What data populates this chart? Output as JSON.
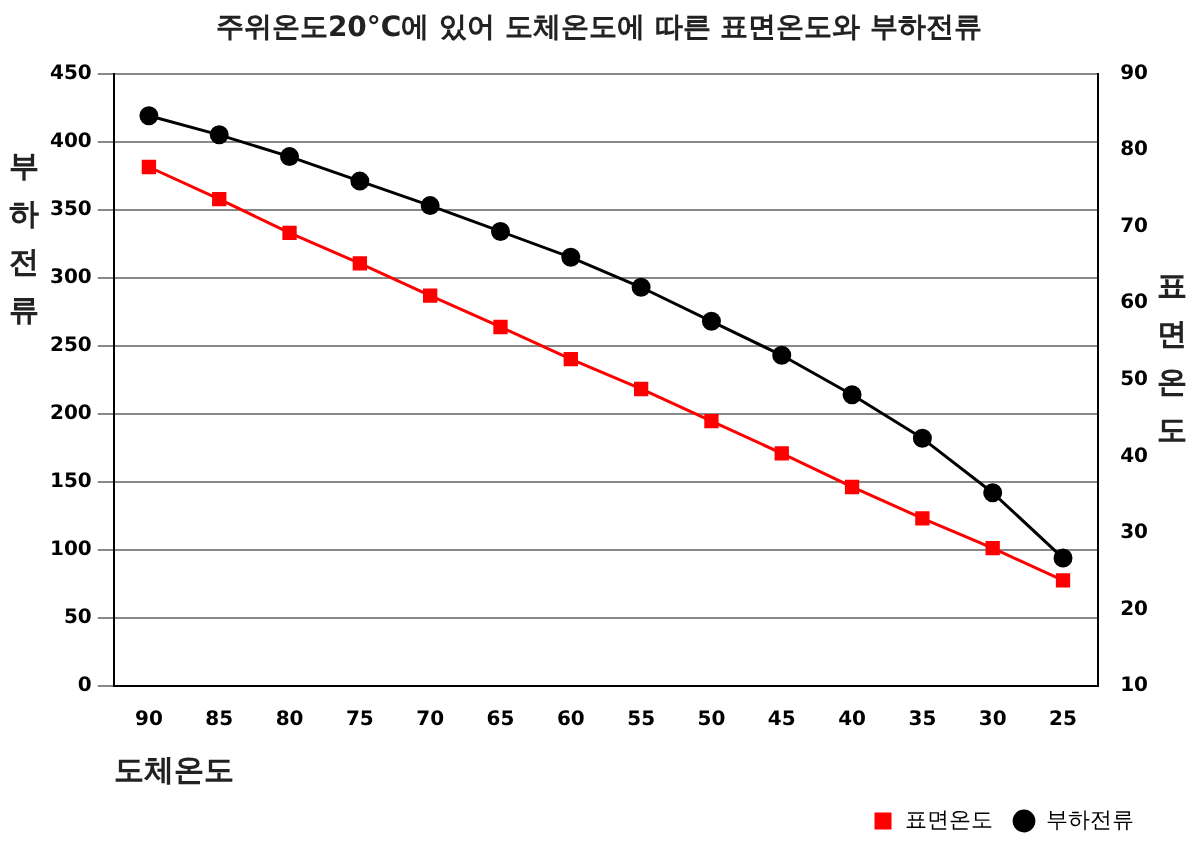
{
  "chart_data": {
    "type": "line",
    "title": "주위온도20°C에 있어 도체온도에 따른 표면온도와 부하전류",
    "xlabel": "도체온도",
    "ylabel": "부하전류",
    "y2label": "표면온도",
    "categories": [
      "90",
      "85",
      "80",
      "75",
      "70",
      "65",
      "60",
      "55",
      "50",
      "45",
      "40",
      "35",
      "30",
      "25"
    ],
    "series": [
      {
        "name": "표면온도",
        "color": "#ff0000",
        "axis": "y2",
        "marker": "square",
        "values": [
          77.8,
          73.6,
          69.2,
          65.2,
          61.0,
          56.9,
          52.7,
          48.8,
          44.6,
          40.4,
          36.0,
          31.9,
          28.0,
          23.8
        ]
      },
      {
        "name": "부하전류",
        "color": "#000000",
        "marker": "circle",
        "values": [
          419,
          405,
          389,
          371,
          353,
          334,
          315,
          293,
          268,
          243,
          214,
          182,
          142,
          94
        ]
      }
    ],
    "ylim": [
      0,
      450
    ],
    "yticks": [
      0,
      50,
      100,
      150,
      200,
      250,
      300,
      350,
      400,
      450
    ],
    "y2lim": [
      10,
      90
    ],
    "y2ticks": [
      10,
      20,
      30,
      40,
      50,
      60,
      70,
      80,
      90
    ],
    "grid": "y",
    "legend": "bottom right",
    "line_style": "solid"
  }
}
